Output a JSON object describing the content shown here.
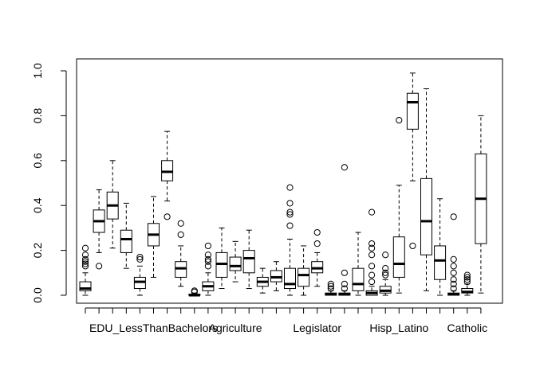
{
  "chart_data": {
    "type": "boxplot",
    "title": "",
    "xlabel": "",
    "ylabel": "",
    "ylim": [
      0,
      1
    ],
    "yticks": [
      0.0,
      0.2,
      0.4,
      0.6,
      0.8,
      1.0
    ],
    "ytick_labels": [
      "0.0",
      "0.2",
      "0.4",
      "0.6",
      "0.8",
      "1.0"
    ],
    "grid": false,
    "legend": "none",
    "x_tick_labels": [
      {
        "label": "EDU_LessThanBachelors",
        "position": 6
      },
      {
        "label": "Agriculture",
        "position": 12
      },
      {
        "label": "Legislator",
        "position": 18
      },
      {
        "label": "Hisp_Latino",
        "position": 24
      },
      {
        "label": "Catholic",
        "position": 29
      }
    ],
    "boxes": [
      {
        "position": 1,
        "whisker_low": 0.0,
        "q1": 0.02,
        "median": 0.03,
        "q3": 0.06,
        "whisker_high": 0.1,
        "outliers": [
          0.13,
          0.14,
          0.15,
          0.16,
          0.18,
          0.21
        ]
      },
      {
        "position": 2,
        "whisker_low": 0.19,
        "q1": 0.28,
        "median": 0.33,
        "q3": 0.38,
        "whisker_high": 0.47,
        "outliers": [
          0.13
        ]
      },
      {
        "position": 3,
        "whisker_low": 0.21,
        "q1": 0.34,
        "median": 0.4,
        "q3": 0.46,
        "whisker_high": 0.6,
        "outliers": []
      },
      {
        "position": 4,
        "whisker_low": 0.12,
        "q1": 0.19,
        "median": 0.25,
        "q3": 0.29,
        "whisker_high": 0.41,
        "outliers": []
      },
      {
        "position": 5,
        "whisker_low": 0.0,
        "q1": 0.03,
        "median": 0.06,
        "q3": 0.08,
        "whisker_high": 0.13,
        "outliers": [
          0.16,
          0.17
        ]
      },
      {
        "position": 6,
        "whisker_low": 0.08,
        "q1": 0.22,
        "median": 0.27,
        "q3": 0.32,
        "whisker_high": 0.44,
        "outliers": []
      },
      {
        "position": 7,
        "whisker_low": 0.42,
        "q1": 0.51,
        "median": 0.55,
        "q3": 0.6,
        "whisker_high": 0.73,
        "outliers": [
          0.35
        ]
      },
      {
        "position": 8,
        "whisker_low": 0.04,
        "q1": 0.08,
        "median": 0.12,
        "q3": 0.15,
        "whisker_high": 0.22,
        "outliers": [
          0.27,
          0.32
        ]
      },
      {
        "position": 9,
        "whisker_low": 0.0,
        "q1": 0.0,
        "median": 0.0,
        "q3": 0.005,
        "whisker_high": 0.01,
        "outliers": [
          0.015,
          0.02
        ]
      },
      {
        "position": 10,
        "whisker_low": 0.0,
        "q1": 0.02,
        "median": 0.04,
        "q3": 0.06,
        "whisker_high": 0.1,
        "outliers": [
          0.13,
          0.15,
          0.16,
          0.18,
          0.22
        ]
      },
      {
        "position": 11,
        "whisker_low": 0.03,
        "q1": 0.08,
        "median": 0.14,
        "q3": 0.19,
        "whisker_high": 0.3,
        "outliers": []
      },
      {
        "position": 12,
        "whisker_low": 0.06,
        "q1": 0.11,
        "median": 0.13,
        "q3": 0.17,
        "whisker_high": 0.24,
        "outliers": []
      },
      {
        "position": 13,
        "whisker_low": 0.03,
        "q1": 0.1,
        "median": 0.165,
        "q3": 0.2,
        "whisker_high": 0.29,
        "outliers": []
      },
      {
        "position": 14,
        "whisker_low": 0.01,
        "q1": 0.04,
        "median": 0.06,
        "q3": 0.08,
        "whisker_high": 0.12,
        "outliers": []
      },
      {
        "position": 15,
        "whisker_low": 0.02,
        "q1": 0.06,
        "median": 0.08,
        "q3": 0.11,
        "whisker_high": 0.15,
        "outliers": []
      },
      {
        "position": 16,
        "whisker_low": 0.0,
        "q1": 0.03,
        "median": 0.05,
        "q3": 0.12,
        "whisker_high": 0.25,
        "outliers": [
          0.31,
          0.36,
          0.37,
          0.41,
          0.48
        ]
      },
      {
        "position": 17,
        "whisker_low": 0.0,
        "q1": 0.04,
        "median": 0.09,
        "q3": 0.12,
        "whisker_high": 0.22,
        "outliers": []
      },
      {
        "position": 18,
        "whisker_low": 0.04,
        "q1": 0.1,
        "median": 0.12,
        "q3": 0.15,
        "whisker_high": 0.19,
        "outliers": [
          0.23,
          0.28
        ]
      },
      {
        "position": 19,
        "whisker_low": 0.0,
        "q1": 0.0,
        "median": 0.005,
        "q3": 0.01,
        "whisker_high": 0.02,
        "outliers": [
          0.03,
          0.04,
          0.05
        ]
      },
      {
        "position": 20,
        "whisker_low": 0.0,
        "q1": 0.0,
        "median": 0.005,
        "q3": 0.01,
        "whisker_high": 0.02,
        "outliers": [
          0.03,
          0.05,
          0.1,
          0.57
        ]
      },
      {
        "position": 21,
        "whisker_low": 0.0,
        "q1": 0.02,
        "median": 0.05,
        "q3": 0.12,
        "whisker_high": 0.28,
        "outliers": []
      },
      {
        "position": 22,
        "whisker_low": 0.0,
        "q1": 0.0,
        "median": 0.01,
        "q3": 0.02,
        "whisker_high": 0.04,
        "outliers": [
          0.06,
          0.09,
          0.13,
          0.18,
          0.21,
          0.23,
          0.37
        ]
      },
      {
        "position": 23,
        "whisker_low": 0.0,
        "q1": 0.01,
        "median": 0.02,
        "q3": 0.04,
        "whisker_high": 0.07,
        "outliers": [
          0.09,
          0.1,
          0.12,
          0.18
        ]
      },
      {
        "position": 24,
        "whisker_low": 0.01,
        "q1": 0.08,
        "median": 0.14,
        "q3": 0.26,
        "whisker_high": 0.49,
        "outliers": [
          0.78
        ]
      },
      {
        "position": 25,
        "whisker_low": 0.51,
        "q1": 0.74,
        "median": 0.86,
        "q3": 0.9,
        "whisker_high": 0.99,
        "outliers": [
          0.22
        ]
      },
      {
        "position": 26,
        "whisker_low": 0.02,
        "q1": 0.18,
        "median": 0.33,
        "q3": 0.52,
        "whisker_high": 0.92,
        "outliers": []
      },
      {
        "position": 27,
        "whisker_low": 0.0,
        "q1": 0.07,
        "median": 0.155,
        "q3": 0.22,
        "whisker_high": 0.43,
        "outliers": []
      },
      {
        "position": 28,
        "whisker_low": 0.0,
        "q1": 0.0,
        "median": 0.005,
        "q3": 0.01,
        "whisker_high": 0.02,
        "outliers": [
          0.03,
          0.05,
          0.07,
          0.1,
          0.13,
          0.16,
          0.35
        ]
      },
      {
        "position": 29,
        "whisker_low": 0.0,
        "q1": 0.01,
        "median": 0.015,
        "q3": 0.03,
        "whisker_high": 0.05,
        "outliers": [
          0.06,
          0.07,
          0.08,
          0.09
        ]
      },
      {
        "position": 30,
        "whisker_low": 0.01,
        "q1": 0.23,
        "median": 0.43,
        "q3": 0.63,
        "whisker_high": 0.8,
        "outliers": []
      }
    ]
  }
}
